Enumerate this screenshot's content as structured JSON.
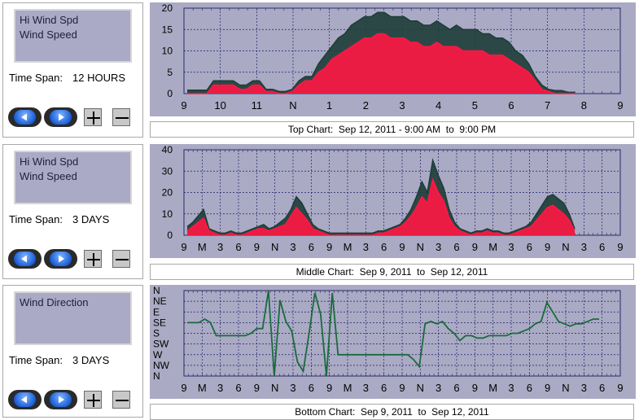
{
  "panels": [
    {
      "legend": [
        "Hi Wind Spd",
        "Wind Speed"
      ],
      "time_span_label": "Time Span:",
      "time_span_value": "12 HOURS",
      "caption": "Top Chart:  Sep 12, 2011 - 9:00 AM  to  9:00 PM"
    },
    {
      "legend": [
        "Hi Wind Spd",
        "Wind Speed"
      ],
      "time_span_label": "Time Span:",
      "time_span_value": "3 DAYS",
      "caption": "Middle Chart:  Sep 9, 2011  to  Sep 12, 2011"
    },
    {
      "legend": [
        "Wind Direction",
        ""
      ],
      "time_span_label": "Time Span:",
      "time_span_value": "3 DAYS",
      "caption": "Bottom Chart:  Sep 9, 2011  to  Sep 12, 2011"
    }
  ],
  "buttons": {
    "back_icon": "left-arrow-icon",
    "forward_icon": "right-arrow-icon",
    "zoom_in_icon": "plus-icon",
    "zoom_out_icon": "minus-icon"
  },
  "colors": {
    "plot_bg": "#aaaac4",
    "hi_wind": "#1e3d38",
    "wind_speed": "#ff1744",
    "direction": "#1a6b3c",
    "grid": "#1e1e6e"
  },
  "chart_data": [
    {
      "type": "area",
      "x_ticks": [
        "9",
        "10",
        "11",
        "N",
        "1",
        "2",
        "3",
        "4",
        "5",
        "6",
        "7",
        "8",
        "9"
      ],
      "y_ticks": [
        0,
        5,
        10,
        15,
        20
      ],
      "ylim": [
        0,
        20
      ],
      "grid": true,
      "series": [
        {
          "name": "Hi Wind Spd",
          "values": [
            0.8,
            0.8,
            0.8,
            0.8,
            3,
            3,
            3,
            3,
            2,
            2,
            3,
            3,
            1,
            1,
            0.5,
            0.5,
            1,
            3,
            4,
            4,
            7,
            9,
            11,
            13,
            14,
            16,
            17,
            18,
            18,
            19,
            19,
            18,
            18,
            18,
            17,
            17,
            16,
            16,
            17,
            16,
            15,
            16,
            15,
            15,
            15,
            14,
            14,
            13,
            13,
            12,
            10,
            9,
            7,
            4,
            2,
            1,
            0.7,
            0.7,
            0.3,
            0.3
          ]
        },
        {
          "name": "Wind Speed",
          "values": [
            0,
            0,
            0,
            0,
            2,
            2,
            2,
            2,
            1,
            1,
            2,
            2,
            0.5,
            0.5,
            0,
            0,
            0.5,
            2,
            3,
            3,
            5,
            6,
            8,
            9,
            10,
            11,
            12,
            13,
            13,
            14,
            14,
            13,
            13,
            13,
            12,
            12,
            11,
            11,
            12,
            11,
            11,
            11,
            10,
            10,
            10,
            10,
            9,
            9,
            9,
            8,
            7,
            6,
            5,
            3,
            1,
            0.5,
            0,
            0,
            0,
            0
          ]
        }
      ]
    },
    {
      "type": "area",
      "x_ticks": [
        "9",
        "M",
        "3",
        "6",
        "9",
        "N",
        "3",
        "6",
        "9",
        "M",
        "3",
        "6",
        "9",
        "N",
        "3",
        "6",
        "9",
        "M",
        "3",
        "6",
        "9",
        "N",
        "3",
        "6",
        "9"
      ],
      "y_ticks": [
        0,
        10,
        20,
        30,
        40
      ],
      "ylim": [
        0,
        40
      ],
      "grid": true,
      "series": [
        {
          "name": "Hi Wind Spd",
          "values": [
            4,
            6,
            9,
            12,
            3,
            2,
            1,
            1,
            2,
            1,
            1,
            2,
            3,
            4,
            5,
            3,
            4,
            6,
            8,
            12,
            18,
            15,
            10,
            5,
            3,
            2,
            1,
            1,
            1,
            1,
            1,
            1,
            1,
            1,
            1,
            2,
            2,
            3,
            4,
            5,
            8,
            12,
            18,
            25,
            20,
            35,
            28,
            22,
            12,
            6,
            3,
            2,
            1,
            2,
            2,
            3,
            2,
            2,
            1,
            1,
            2,
            3,
            4,
            6,
            10,
            14,
            18,
            19,
            17,
            15,
            10,
            3
          ]
        },
        {
          "name": "Wind Speed",
          "values": [
            2,
            4,
            6,
            8,
            2,
            1,
            0,
            0,
            1,
            0,
            0,
            1,
            2,
            3,
            3,
            2,
            3,
            4,
            5,
            9,
            13,
            10,
            7,
            3,
            2,
            1,
            0,
            0,
            0,
            0,
            0,
            0,
            0,
            0,
            0,
            1,
            1,
            2,
            3,
            4,
            6,
            9,
            13,
            18,
            15,
            26,
            20,
            16,
            8,
            4,
            2,
            1,
            0,
            1,
            1,
            2,
            1,
            1,
            0,
            0,
            1,
            2,
            3,
            4,
            7,
            10,
            13,
            14,
            12,
            10,
            7,
            2
          ]
        }
      ]
    },
    {
      "type": "line",
      "x_ticks": [
        "9",
        "M",
        "3",
        "6",
        "9",
        "N",
        "3",
        "6",
        "9",
        "M",
        "3",
        "6",
        "9",
        "N",
        "3",
        "6",
        "9",
        "M",
        "3",
        "6",
        "9",
        "N",
        "3",
        "6",
        "9"
      ],
      "y_ticks": [
        "N",
        "NW",
        "W",
        "SW",
        "S",
        "SE",
        "E",
        "NE",
        "N"
      ],
      "grid": true,
      "series": [
        {
          "name": "Wind Direction",
          "values": [
            225,
            225,
            225,
            240,
            225,
            170,
            170,
            170,
            170,
            170,
            170,
            180,
            200,
            200,
            360,
            0,
            320,
            230,
            190,
            60,
            20,
            180,
            350,
            260,
            0,
            350,
            90,
            90,
            90,
            90,
            90,
            90,
            90,
            90,
            90,
            90,
            90,
            90,
            90,
            70,
            40,
            220,
            230,
            220,
            230,
            200,
            180,
            150,
            170,
            170,
            160,
            160,
            170,
            170,
            170,
            170,
            180,
            180,
            190,
            200,
            220,
            230,
            310,
            270,
            230,
            220,
            210,
            220,
            220,
            230,
            240,
            240
          ]
        }
      ]
    }
  ]
}
